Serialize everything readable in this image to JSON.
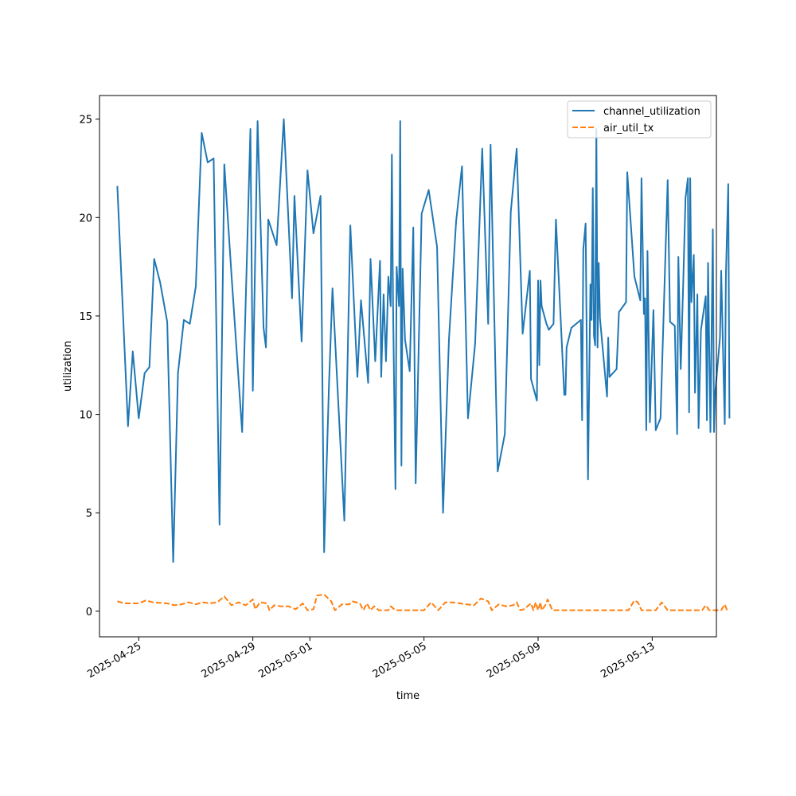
{
  "chart_data": {
    "type": "line",
    "title": "",
    "xlabel": "time",
    "ylabel": "utilization",
    "xlim": [
      "2025-04-23T15:00",
      "2025-05-15T06:00"
    ],
    "ylim": [
      -1.3,
      26.2
    ],
    "x_ticks": [
      "2025-04-25",
      "2025-04-29",
      "2025-05-01",
      "2025-05-05",
      "2025-05-09",
      "2025-05-13"
    ],
    "y_ticks": [
      0,
      5,
      10,
      15,
      20,
      25
    ],
    "grid": false,
    "legend_position": "top-right",
    "series": [
      {
        "name": "channel_utilization",
        "color": "#1f77b4",
        "style": "solid",
        "points": [
          [
            "2025-04-24T06:00",
            21.6
          ],
          [
            "2025-04-24T15:00",
            9.4
          ],
          [
            "2025-04-24T19:00",
            13.2
          ],
          [
            "2025-04-25T00:00",
            9.8
          ],
          [
            "2025-04-25T05:00",
            12.1
          ],
          [
            "2025-04-25T09:00",
            12.4
          ],
          [
            "2025-04-25T13:00",
            17.9
          ],
          [
            "2025-04-25T18:00",
            16.7
          ],
          [
            "2025-04-26T00:00",
            14.7
          ],
          [
            "2025-04-26T05:00",
            2.5
          ],
          [
            "2025-04-26T09:00",
            12.1
          ],
          [
            "2025-04-26T14:00",
            14.8
          ],
          [
            "2025-04-26T19:00",
            14.6
          ],
          [
            "2025-04-27T00:00",
            16.5
          ],
          [
            "2025-04-27T05:00",
            24.3
          ],
          [
            "2025-04-27T10:00",
            22.8
          ],
          [
            "2025-04-27T15:00",
            23.0
          ],
          [
            "2025-04-27T20:00",
            4.4
          ],
          [
            "2025-04-28T00:00",
            22.7
          ],
          [
            "2025-04-28T06:00",
            17.1
          ],
          [
            "2025-04-28T15:00",
            9.1
          ],
          [
            "2025-04-28T22:00",
            24.5
          ],
          [
            "2025-04-29T00:00",
            11.2
          ],
          [
            "2025-04-29T04:00",
            24.9
          ],
          [
            "2025-04-29T09:00",
            14.4
          ],
          [
            "2025-04-29T11:00",
            13.4
          ],
          [
            "2025-04-29T13:00",
            19.9
          ],
          [
            "2025-04-29T20:00",
            18.6
          ],
          [
            "2025-04-30T02:00",
            25.0
          ],
          [
            "2025-04-30T09:00",
            15.9
          ],
          [
            "2025-04-30T11:00",
            21.1
          ],
          [
            "2025-04-30T17:00",
            13.7
          ],
          [
            "2025-04-30T22:00",
            22.4
          ],
          [
            "2025-05-01T03:00",
            19.2
          ],
          [
            "2025-05-01T09:00",
            21.1
          ],
          [
            "2025-05-01T12:00",
            3.0
          ],
          [
            "2025-05-01T16:00",
            11.4
          ],
          [
            "2025-05-01T19:00",
            16.4
          ],
          [
            "2025-05-02T00:00",
            10.5
          ],
          [
            "2025-05-02T05:00",
            4.6
          ],
          [
            "2025-05-02T10:00",
            19.6
          ],
          [
            "2025-05-02T16:00",
            11.9
          ],
          [
            "2025-05-02T19:00",
            15.8
          ],
          [
            "2025-05-03T01:00",
            11.6
          ],
          [
            "2025-05-03T03:00",
            17.9
          ],
          [
            "2025-05-03T07:00",
            12.7
          ],
          [
            "2025-05-03T11:00",
            17.8
          ],
          [
            "2025-05-03T12:00",
            11.9
          ],
          [
            "2025-05-03T14:00",
            16.1
          ],
          [
            "2025-05-03T16:00",
            12.7
          ],
          [
            "2025-05-03T18:00",
            17.0
          ],
          [
            "2025-05-03T20:00",
            15.5
          ],
          [
            "2025-05-03T21:00",
            23.2
          ],
          [
            "2025-05-03T22:00",
            15.5
          ],
          [
            "2025-05-04T00:00",
            6.2
          ],
          [
            "2025-05-04T01:00",
            17.5
          ],
          [
            "2025-05-04T03:00",
            15.5
          ],
          [
            "2025-05-04T04:00",
            24.9
          ],
          [
            "2025-05-04T05:00",
            7.4
          ],
          [
            "2025-05-04T06:00",
            17.4
          ],
          [
            "2025-05-04T08:00",
            13.8
          ],
          [
            "2025-05-04T12:00",
            12.2
          ],
          [
            "2025-05-04T15:00",
            19.5
          ],
          [
            "2025-05-04T17:00",
            6.5
          ],
          [
            "2025-05-04T22:00",
            20.2
          ],
          [
            "2025-05-05T04:00",
            21.4
          ],
          [
            "2025-05-05T11:00",
            18.5
          ],
          [
            "2025-05-05T16:00",
            5.0
          ],
          [
            "2025-05-05T21:00",
            13.8
          ],
          [
            "2025-05-06T03:00",
            19.8
          ],
          [
            "2025-05-06T08:00",
            22.6
          ],
          [
            "2025-05-06T13:00",
            9.8
          ],
          [
            "2025-05-06T19:00",
            13.6
          ],
          [
            "2025-05-07T01:00",
            23.5
          ],
          [
            "2025-05-07T06:00",
            14.6
          ],
          [
            "2025-05-07T08:00",
            23.7
          ],
          [
            "2025-05-07T14:00",
            7.1
          ],
          [
            "2025-05-07T20:00",
            9.0
          ],
          [
            "2025-05-08T01:00",
            20.3
          ],
          [
            "2025-05-08T06:00",
            23.5
          ],
          [
            "2025-05-08T11:00",
            14.1
          ],
          [
            "2025-05-08T17:00",
            17.3
          ],
          [
            "2025-05-08T18:00",
            11.8
          ],
          [
            "2025-05-08T23:00",
            10.7
          ],
          [
            "2025-05-09T00:00",
            16.8
          ],
          [
            "2025-05-09T01:00",
            12.5
          ],
          [
            "2025-05-09T02:00",
            16.8
          ],
          [
            "2025-05-09T03:00",
            15.5
          ],
          [
            "2025-05-09T07:00",
            14.6
          ],
          [
            "2025-05-09T09:00",
            14.3
          ],
          [
            "2025-05-09T13:00",
            14.6
          ],
          [
            "2025-05-09T15:00",
            19.9
          ],
          [
            "2025-05-09T22:00",
            11.0
          ],
          [
            "2025-05-09T23:00",
            11.0
          ],
          [
            "2025-05-10T00:00",
            13.4
          ],
          [
            "2025-05-10T04:00",
            14.4
          ],
          [
            "2025-05-10T12:00",
            14.8
          ],
          [
            "2025-05-10T13:00",
            9.7
          ],
          [
            "2025-05-10T14:00",
            18.4
          ],
          [
            "2025-05-10T16:00",
            19.7
          ],
          [
            "2025-05-10T18:00",
            6.7
          ],
          [
            "2025-05-10T20:00",
            16.6
          ],
          [
            "2025-05-10T21:00",
            14.8
          ],
          [
            "2025-05-10T22:00",
            21.5
          ],
          [
            "2025-05-10T23:00",
            14.0
          ],
          [
            "2025-05-11T00:00",
            13.5
          ],
          [
            "2025-05-11T01:00",
            24.5
          ],
          [
            "2025-05-11T02:00",
            13.4
          ],
          [
            "2025-05-11T03:00",
            17.7
          ],
          [
            "2025-05-11T04:00",
            14.9
          ],
          [
            "2025-05-11T10:00",
            10.9
          ],
          [
            "2025-05-11T11:00",
            13.9
          ],
          [
            "2025-05-11T12:00",
            11.9
          ],
          [
            "2025-05-11T18:00",
            12.3
          ],
          [
            "2025-05-11T20:00",
            15.2
          ],
          [
            "2025-05-12T02:00",
            15.7
          ],
          [
            "2025-05-12T03:00",
            22.3
          ],
          [
            "2025-05-12T09:00",
            17.0
          ],
          [
            "2025-05-12T14:00",
            15.8
          ],
          [
            "2025-05-12T15:00",
            22.0
          ],
          [
            "2025-05-12T17:00",
            15.1
          ],
          [
            "2025-05-12T18:00",
            15.9
          ],
          [
            "2025-05-12T19:00",
            9.2
          ],
          [
            "2025-05-12T20:00",
            18.3
          ],
          [
            "2025-05-12T22:00",
            9.6
          ],
          [
            "2025-05-13T01:00",
            15.3
          ],
          [
            "2025-05-13T03:00",
            9.2
          ],
          [
            "2025-05-13T07:00",
            9.8
          ],
          [
            "2025-05-13T13:00",
            21.9
          ],
          [
            "2025-05-13T15:00",
            14.7
          ],
          [
            "2025-05-13T17:00",
            14.6
          ],
          [
            "2025-05-13T19:00",
            14.5
          ],
          [
            "2025-05-13T21:00",
            9.0
          ],
          [
            "2025-05-13T22:00",
            18.0
          ],
          [
            "2025-05-14T00:00",
            12.3
          ],
          [
            "2025-05-14T02:00",
            16.5
          ],
          [
            "2025-05-14T04:00",
            21.0
          ],
          [
            "2025-05-14T06:00",
            22.0
          ],
          [
            "2025-05-14T07:00",
            10.1
          ],
          [
            "2025-05-14T08:00",
            22.0
          ],
          [
            "2025-05-14T09:00",
            15.7
          ],
          [
            "2025-05-14T11:00",
            18.1
          ],
          [
            "2025-05-14T12:00",
            11.1
          ],
          [
            "2025-05-14T14:00",
            16.1
          ],
          [
            "2025-05-14T15:00",
            9.3
          ],
          [
            "2025-05-14T17:00",
            14.3
          ],
          [
            "2025-05-14T21:00",
            16.0
          ],
          [
            "2025-05-14T22:00",
            9.7
          ],
          [
            "2025-05-14T23:00",
            17.7
          ],
          [
            "2025-05-15T01:00",
            9.1
          ],
          [
            "2025-05-15T03:00",
            19.4
          ],
          [
            "2025-05-15T04:00",
            9.1
          ],
          [
            "2025-05-15T05:00",
            11.1
          ],
          [
            "2025-05-15T09:00",
            13.9
          ],
          [
            "2025-05-15T10:00",
            17.3
          ],
          [
            "2025-05-15T13:00",
            9.5
          ],
          [
            "2025-05-15T14:00",
            17.0
          ],
          [
            "2025-05-15T16:00",
            21.7
          ],
          [
            "2025-05-15T17:00",
            9.8
          ]
        ]
      },
      {
        "name": "air_util_tx",
        "color": "#ff7f0e",
        "style": "dashed",
        "points": [
          [
            "2025-04-24T06:00",
            0.5
          ],
          [
            "2025-04-24T12:00",
            0.4
          ],
          [
            "2025-04-25T00:00",
            0.4
          ],
          [
            "2025-04-25T06:00",
            0.55
          ],
          [
            "2025-04-25T12:00",
            0.45
          ],
          [
            "2025-04-26T00:00",
            0.4
          ],
          [
            "2025-04-26T06:00",
            0.3
          ],
          [
            "2025-04-26T12:00",
            0.35
          ],
          [
            "2025-04-26T18:00",
            0.45
          ],
          [
            "2025-04-27T00:00",
            0.35
          ],
          [
            "2025-04-27T06:00",
            0.45
          ],
          [
            "2025-04-27T12:00",
            0.4
          ],
          [
            "2025-04-27T18:00",
            0.45
          ],
          [
            "2025-04-28T00:00",
            0.75
          ],
          [
            "2025-04-28T06:00",
            0.3
          ],
          [
            "2025-04-28T12:00",
            0.45
          ],
          [
            "2025-04-28T18:00",
            0.3
          ],
          [
            "2025-04-29T00:00",
            0.6
          ],
          [
            "2025-04-29T02:00",
            0.1
          ],
          [
            "2025-04-29T06:00",
            0.45
          ],
          [
            "2025-04-29T12:00",
            0.4
          ],
          [
            "2025-04-29T14:00",
            0.05
          ],
          [
            "2025-04-29T18:00",
            0.3
          ],
          [
            "2025-04-30T00:00",
            0.25
          ],
          [
            "2025-04-30T06:00",
            0.25
          ],
          [
            "2025-04-30T12:00",
            0.1
          ],
          [
            "2025-04-30T18:00",
            0.4
          ],
          [
            "2025-04-30T22:00",
            0.05
          ],
          [
            "2025-05-01T03:00",
            0.1
          ],
          [
            "2025-05-01T06:00",
            0.8
          ],
          [
            "2025-05-01T12:00",
            0.85
          ],
          [
            "2025-05-01T18:00",
            0.5
          ],
          [
            "2025-05-01T21:00",
            0.05
          ],
          [
            "2025-05-02T03:00",
            0.35
          ],
          [
            "2025-05-02T09:00",
            0.35
          ],
          [
            "2025-05-02T12:00",
            0.5
          ],
          [
            "2025-05-02T18:00",
            0.4
          ],
          [
            "2025-05-02T21:00",
            0.05
          ],
          [
            "2025-05-03T00:00",
            0.4
          ],
          [
            "2025-05-03T03:00",
            0.05
          ],
          [
            "2025-05-03T06:00",
            0.25
          ],
          [
            "2025-05-03T10:00",
            0.05
          ],
          [
            "2025-05-03T18:00",
            0.05
          ],
          [
            "2025-05-03T20:00",
            0.25
          ],
          [
            "2025-05-04T00:00",
            0.05
          ],
          [
            "2025-05-04T12:00",
            0.05
          ],
          [
            "2025-05-05T00:00",
            0.05
          ],
          [
            "2025-05-05T06:00",
            0.45
          ],
          [
            "2025-05-05T12:00",
            0.05
          ],
          [
            "2025-05-05T18:00",
            0.45
          ],
          [
            "2025-05-06T00:00",
            0.45
          ],
          [
            "2025-05-06T06:00",
            0.4
          ],
          [
            "2025-05-06T12:00",
            0.35
          ],
          [
            "2025-05-06T18:00",
            0.3
          ],
          [
            "2025-05-07T00:00",
            0.65
          ],
          [
            "2025-05-07T06:00",
            0.5
          ],
          [
            "2025-05-07T09:00",
            0.05
          ],
          [
            "2025-05-07T15:00",
            0.35
          ],
          [
            "2025-05-07T21:00",
            0.25
          ],
          [
            "2025-05-08T03:00",
            0.3
          ],
          [
            "2025-05-08T06:00",
            0.45
          ],
          [
            "2025-05-08T09:00",
            0.05
          ],
          [
            "2025-05-08T12:00",
            0.1
          ],
          [
            "2025-05-08T18:00",
            0.4
          ],
          [
            "2025-05-08T20:00",
            0.05
          ],
          [
            "2025-05-08T22:00",
            0.45
          ],
          [
            "2025-05-09T00:00",
            0.05
          ],
          [
            "2025-05-09T02:00",
            0.45
          ],
          [
            "2025-05-09T03:00",
            0.05
          ],
          [
            "2025-05-09T06:00",
            0.3
          ],
          [
            "2025-05-09T08:00",
            0.6
          ],
          [
            "2025-05-09T12:00",
            0.05
          ],
          [
            "2025-05-10T00:00",
            0.05
          ],
          [
            "2025-05-10T12:00",
            0.05
          ],
          [
            "2025-05-11T00:00",
            0.05
          ],
          [
            "2025-05-11T12:00",
            0.05
          ],
          [
            "2025-05-12T00:00",
            0.05
          ],
          [
            "2025-05-12T04:00",
            0.05
          ],
          [
            "2025-05-12T09:00",
            0.55
          ],
          [
            "2025-05-12T12:00",
            0.45
          ],
          [
            "2025-05-12T15:00",
            0.05
          ],
          [
            "2025-05-13T00:00",
            0.05
          ],
          [
            "2025-05-13T03:00",
            0.05
          ],
          [
            "2025-05-13T08:00",
            0.45
          ],
          [
            "2025-05-13T13:00",
            0.05
          ],
          [
            "2025-05-14T00:00",
            0.05
          ],
          [
            "2025-05-14T12:00",
            0.05
          ],
          [
            "2025-05-14T18:00",
            0.05
          ],
          [
            "2025-05-14T21:00",
            0.3
          ],
          [
            "2025-05-15T00:00",
            0.05
          ],
          [
            "2025-05-15T06:00",
            0.05
          ],
          [
            "2025-05-15T10:00",
            0.05
          ],
          [
            "2025-05-15T13:00",
            0.35
          ],
          [
            "2025-05-15T15:00",
            0.05
          ],
          [
            "2025-05-15T17:00",
            0.05
          ]
        ]
      }
    ]
  }
}
